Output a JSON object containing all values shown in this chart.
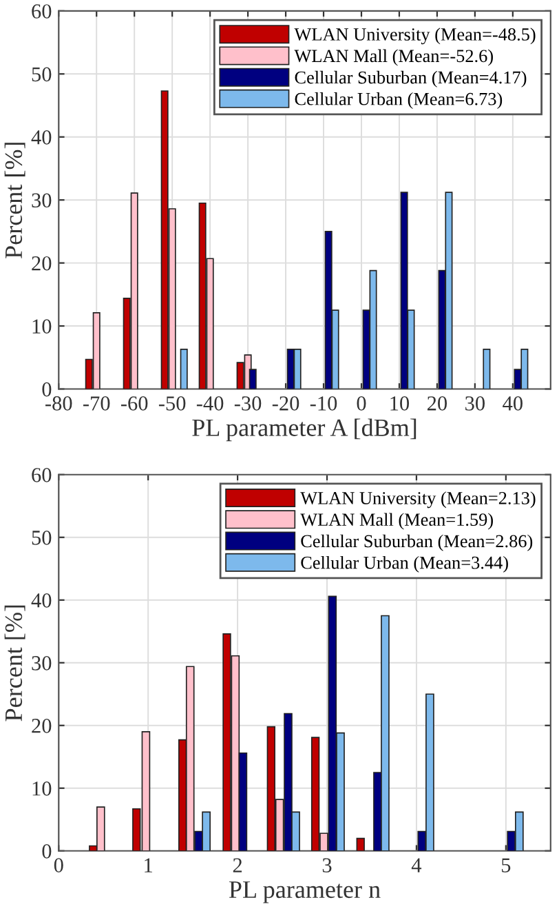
{
  "chart_data": [
    {
      "type": "bar",
      "xlabel": "PL parameter A [dBm]",
      "ylabel": "Percent [%]",
      "xlim": [
        -80,
        50
      ],
      "xticks": [
        -80,
        -70,
        -60,
        -50,
        -40,
        -30,
        -20,
        -10,
        0,
        10,
        20,
        30,
        40
      ],
      "ylim": [
        0,
        60
      ],
      "yticks": [
        0,
        10,
        20,
        30,
        40,
        50,
        60
      ],
      "grid": true,
      "legend": "top right",
      "series": [
        {
          "name": "WLAN University (Mean=-48.5)",
          "color": "#c00000",
          "x": [
            -72,
            -62,
            -52,
            -42,
            -32
          ],
          "values": [
            4.7,
            14.4,
            47.3,
            29.5,
            4.2
          ]
        },
        {
          "name": "WLAN Mall (Mean=-52.6)",
          "color": "#ffc0cb",
          "x": [
            -70,
            -60,
            -50,
            -40,
            -30
          ],
          "values": [
            12.1,
            31.1,
            28.6,
            20.7,
            5.4
          ]
        },
        {
          "name": "Cellular Suburban (Mean=4.17)",
          "color": "#000080",
          "x": [
            -28.7,
            -18.7,
            -8.7,
            1.3,
            11.3,
            21.3,
            41.3
          ],
          "values": [
            3.1,
            6.3,
            25.0,
            12.5,
            31.2,
            18.8,
            3.1
          ]
        },
        {
          "name": "Cellular Urban (Mean=6.73)",
          "color": "#7db9ec",
          "x": [
            -46.9,
            -16.9,
            -6.9,
            3.1,
            13.1,
            23.1,
            33.1,
            43.1
          ],
          "values": [
            6.3,
            6.3,
            12.5,
            18.8,
            12.5,
            31.2,
            6.3,
            6.3
          ]
        }
      ]
    },
    {
      "type": "bar",
      "xlabel": "PL parameter n",
      "ylabel": "Percent [%]",
      "xlim": [
        0,
        5.5
      ],
      "xticks": [
        0,
        1,
        2,
        3,
        4,
        5
      ],
      "ylim": [
        0,
        60
      ],
      "yticks": [
        0,
        10,
        20,
        30,
        40,
        50,
        60
      ],
      "grid": true,
      "legend": "top right",
      "series": [
        {
          "name": "WLAN University (Mean=2.13)",
          "color": "#c00000",
          "x": [
            0.385,
            0.87,
            1.385,
            1.88,
            2.375,
            2.87,
            3.375
          ],
          "values": [
            0.8,
            6.7,
            17.7,
            34.6,
            19.8,
            18.1,
            2.0
          ]
        },
        {
          "name": "WLAN Mall (Mean=1.59)",
          "color": "#ffc0cb",
          "x": [
            0.47,
            0.975,
            1.47,
            1.975,
            2.47,
            2.965
          ],
          "values": [
            7.0,
            19.0,
            29.4,
            31.1,
            8.2,
            2.8
          ]
        },
        {
          "name": "Cellular Suburban (Mean=2.86)",
          "color": "#000080",
          "x": [
            1.565,
            2.06,
            2.565,
            3.06,
            3.565,
            4.06,
            5.06
          ],
          "values": [
            3.1,
            15.6,
            21.9,
            40.6,
            12.5,
            3.1,
            3.1
          ]
        },
        {
          "name": "Cellular Urban (Mean=3.44)",
          "color": "#7db9ec",
          "x": [
            1.65,
            2.65,
            3.15,
            3.65,
            4.15,
            5.15
          ],
          "values": [
            6.2,
            6.2,
            18.8,
            37.5,
            25.0,
            6.2
          ]
        }
      ]
    }
  ]
}
